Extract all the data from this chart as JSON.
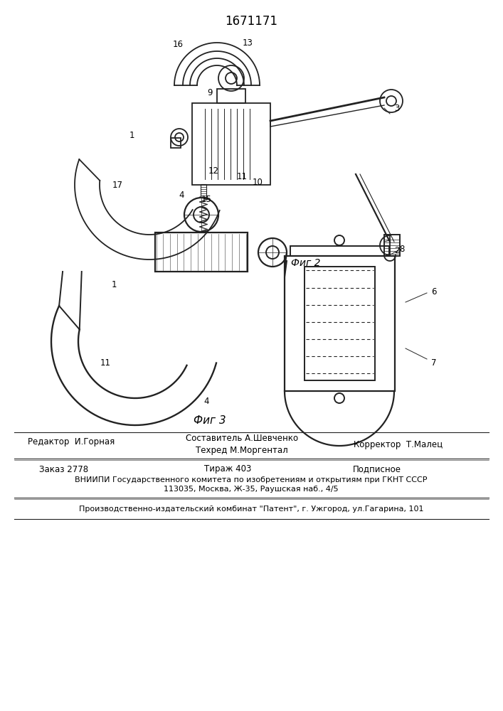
{
  "title": "1671171",
  "fig2_label": "Фиг 2",
  "fig3_label": "Фиг 3",
  "footer_line1_left": "Редактор  И.Горная",
  "footer_line1_mid_top": "Составитель А.Шевченко",
  "footer_line1_mid_bot": "Техред М.Моргентал",
  "footer_line1_right": "Корректор  Т.Малец",
  "footer_line2_left": "Заказ 2778",
  "footer_line2_mid": "Тираж 403",
  "footer_line2_right": "Подписное",
  "footer_line3": "ВНИИПИ Государственного комитета по изобретениям и открытиям при ГКНТ СССР",
  "footer_line4": "113035, Москва, Ж-35, Раушская наб., 4/5",
  "footer_line5": "Производственно-издательский комбинат \"Патент\", г. Ужгород, ул.Гагарина, 101",
  "bg_color": "#ffffff",
  "text_color": "#000000",
  "line_color": "#222222"
}
